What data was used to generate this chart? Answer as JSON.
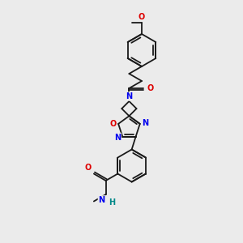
{
  "background_color": "#ebebeb",
  "bond_color": "#1a1a1a",
  "atom_colors": {
    "N": "#0000ee",
    "O": "#dd0000",
    "H": "#008888",
    "C": "#1a1a1a"
  },
  "figsize": [
    3.0,
    3.0
  ],
  "dpi": 100,
  "lw": 1.3,
  "fs": 7.0
}
